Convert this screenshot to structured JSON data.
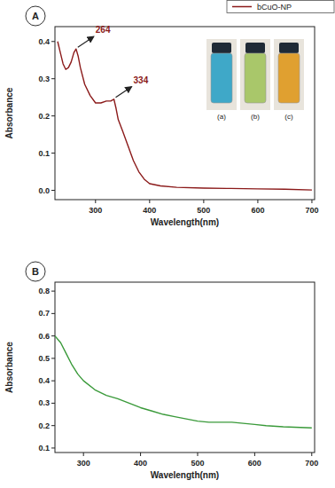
{
  "chart_data": [
    {
      "type": "line",
      "panel": "A",
      "xlabel": "Wavelength(nm)",
      "ylabel": "Absorbance",
      "x": [
        230,
        235,
        240,
        245,
        250,
        255,
        260,
        264,
        268,
        272,
        280,
        290,
        300,
        310,
        320,
        328,
        334,
        338,
        342,
        350,
        360,
        370,
        380,
        390,
        400,
        420,
        450,
        500,
        550,
        600,
        650,
        700
      ],
      "series": [
        {
          "name": "bCuO-NP",
          "color": "#8b1a1a",
          "values": [
            0.4,
            0.37,
            0.34,
            0.325,
            0.33,
            0.345,
            0.37,
            0.38,
            0.36,
            0.33,
            0.285,
            0.255,
            0.235,
            0.235,
            0.24,
            0.24,
            0.245,
            0.22,
            0.19,
            0.16,
            0.12,
            0.08,
            0.05,
            0.03,
            0.018,
            0.012,
            0.008,
            0.006,
            0.005,
            0.004,
            0.003,
            0.001
          ]
        }
      ],
      "xlim": [
        225,
        705
      ],
      "xticks": [
        300,
        400,
        500,
        600,
        700
      ],
      "ylim": [
        -0.025,
        0.44
      ],
      "yticks": [
        {
          "value": 0,
          "label": "0.0"
        },
        0.1,
        0.2,
        0.3,
        0.4
      ],
      "legend": "top-right",
      "annotations": [
        {
          "text": "264",
          "x": 264,
          "y": 0.38
        },
        {
          "text": "334",
          "x": 334,
          "y": 0.245
        }
      ],
      "inset_labels": [
        "(a)",
        "(b)",
        "(c)"
      ]
    },
    {
      "type": "line",
      "panel": "B",
      "xlabel": "Wavelength(nm)",
      "ylabel": "Absorbance",
      "x": [
        250,
        260,
        270,
        280,
        290,
        300,
        320,
        340,
        360,
        380,
        400,
        420,
        440,
        460,
        480,
        500,
        520,
        540,
        560,
        580,
        600,
        620,
        650,
        700
      ],
      "series": [
        {
          "color": "#3a9a3a",
          "values": [
            0.6,
            0.57,
            0.52,
            0.47,
            0.43,
            0.4,
            0.36,
            0.335,
            0.32,
            0.3,
            0.28,
            0.265,
            0.25,
            0.24,
            0.23,
            0.22,
            0.215,
            0.215,
            0.215,
            0.21,
            0.205,
            0.2,
            0.195,
            0.19
          ]
        }
      ],
      "xlim": [
        250,
        705
      ],
      "xticks": [
        300,
        400,
        500,
        600,
        700
      ],
      "ylim": [
        0.08,
        0.84
      ],
      "yticks": [
        0.1,
        0.2,
        0.3,
        0.4,
        0.5,
        0.6,
        0.7,
        0.8
      ]
    }
  ]
}
